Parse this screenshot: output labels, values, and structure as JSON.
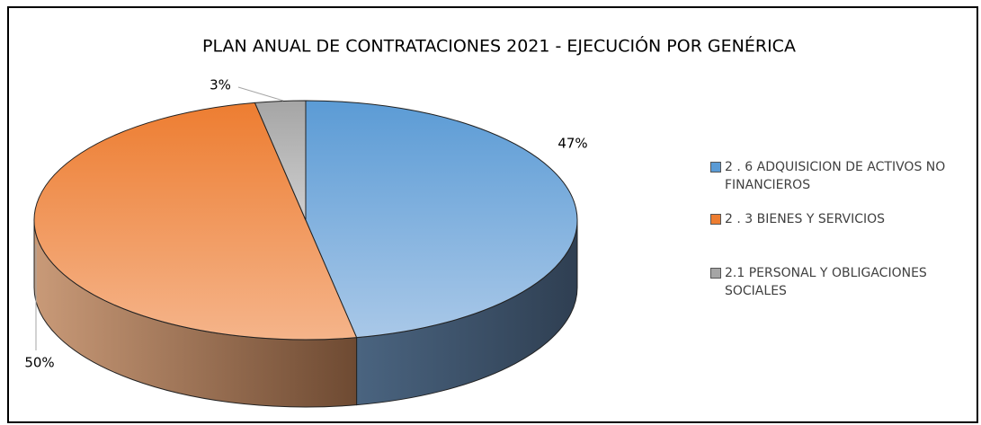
{
  "chart_data": {
    "type": "pie",
    "title": "PLAN ANUAL DE CONTRATACIONES 2021 - EJECUCIÓN POR GENÉRICA",
    "categories": [
      "2 . 6 ADQUISICION DE ACTIVOS NO FINANCIEROS",
      "2 . 3 BIENES Y SERVICIOS",
      "2.1 PERSONAL Y OBLIGACIONES SOCIALES"
    ],
    "values": [
      47,
      50,
      3
    ],
    "value_labels": [
      "47%",
      "50%",
      "3%"
    ],
    "colors": [
      "#5b9bd5",
      "#ed7d31",
      "#a5a5a5"
    ],
    "legend": "right"
  }
}
